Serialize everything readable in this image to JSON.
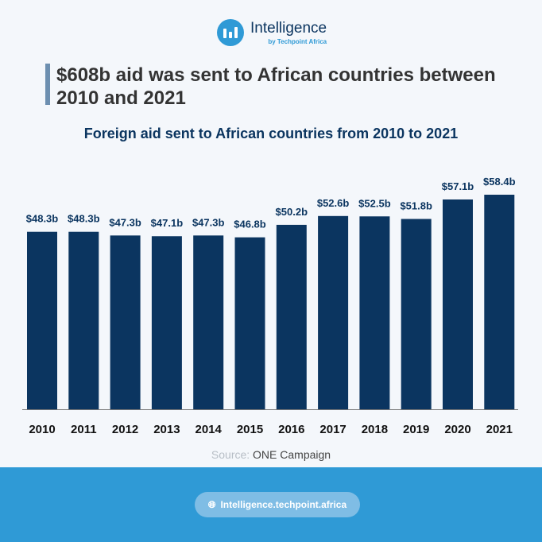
{
  "brand": {
    "name": "Intelligence",
    "sub": "by Techpoint Africa",
    "icon": "bar-chart-logo-icon"
  },
  "headline": "$608b aid was sent to African countries between 2010 and 2021",
  "colors": {
    "bar": "#0b3560",
    "accent": "#2f9ad6",
    "footer": "#2f9ad6"
  },
  "source": {
    "label": "Source:",
    "value": "ONE Campaign"
  },
  "footer": {
    "link": "Intelligence.techpoint.africa",
    "icon": "globe-icon"
  },
  "chart_data": {
    "type": "bar",
    "title": "Foreign aid sent to African countries from 2010 to 2021",
    "xlabel": "",
    "ylabel": "",
    "ylim": [
      0,
      58.4
    ],
    "grid": false,
    "categories": [
      "2010",
      "2011",
      "2012",
      "2013",
      "2014",
      "2015",
      "2016",
      "2017",
      "2018",
      "2019",
      "2020",
      "2021"
    ],
    "values": [
      48.3,
      48.3,
      47.3,
      47.1,
      47.3,
      46.8,
      50.2,
      52.6,
      52.5,
      51.8,
      57.1,
      58.4
    ],
    "data_labels": [
      "$48.3b",
      "$48.3b",
      "$47.3b",
      "$47.1b",
      "$47.3b",
      "$46.8b",
      "$50.2b",
      "$52.6b",
      "$52.5b",
      "$51.8b",
      "$57.1b",
      "$58.4b"
    ]
  }
}
